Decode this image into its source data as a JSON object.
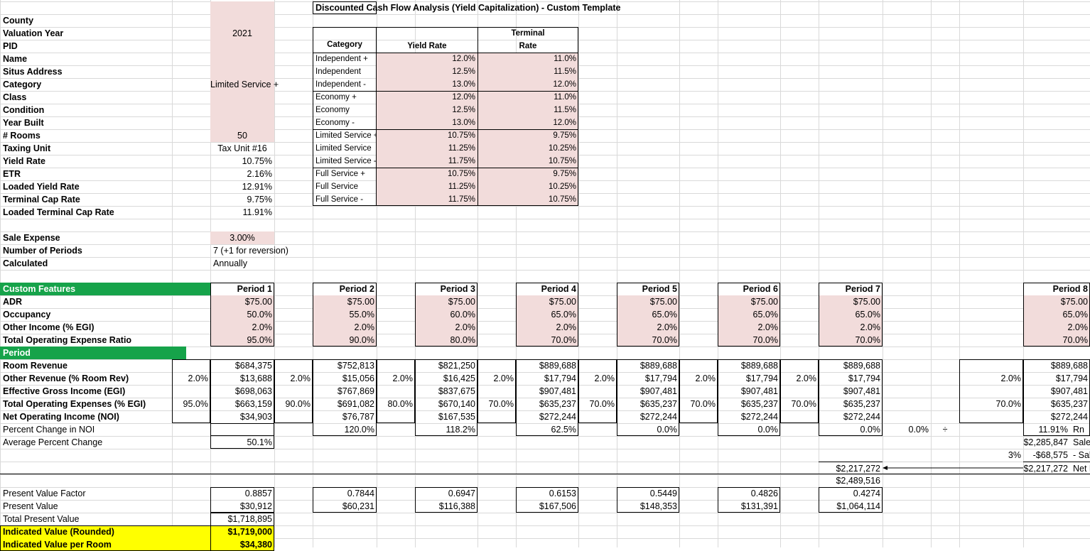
{
  "colors": {
    "input_fill": "#f2dcdb",
    "header_fill": "#16a34a",
    "highlight_fill": "#ffff00",
    "grid_line": "#d9d9d9"
  },
  "title": "Discounted Cash Flow Analysis (Yield Capitalization) - Custom Template",
  "subject": {
    "labels": [
      "County",
      "Valuation Year",
      "PID",
      "Name",
      "Situs Address",
      "Category",
      "Class",
      "Condition",
      "Year Built",
      "# Rooms",
      "Taxing Unit",
      "Yield Rate",
      "ETR",
      "Loaded Yield Rate",
      "Terminal Cap Rate",
      "Loaded Terminal Cap Rate"
    ],
    "values": [
      "",
      "2021",
      "",
      "",
      "",
      "Limited Service +",
      "",
      "",
      "",
      "50",
      "Tax Unit #16",
      "10.75%",
      "2.16%",
      "12.91%",
      "9.75%",
      "11.91%"
    ]
  },
  "settings": {
    "labels": [
      "Sale Expense",
      "Number of Periods",
      "Calculated"
    ],
    "values": [
      "3.00%",
      "7 (+1 for reversion)",
      "Annually"
    ]
  },
  "rate_table": {
    "headers": [
      "Category",
      "Yield Rate",
      "Terminal",
      "Rate"
    ],
    "rows": [
      [
        "Independent +",
        "12.0%",
        "11.0%"
      ],
      [
        "Independent",
        "12.5%",
        "11.5%"
      ],
      [
        "Independent -",
        "13.0%",
        "12.0%"
      ],
      [
        "Economy +",
        "12.0%",
        "11.0%"
      ],
      [
        "Economy",
        "12.5%",
        "11.5%"
      ],
      [
        "Economy -",
        "13.0%",
        "12.0%"
      ],
      [
        "Limited Service +",
        "10.75%",
        "9.75%"
      ],
      [
        "Limited Service",
        "11.25%",
        "10.25%"
      ],
      [
        "Limited Service -",
        "11.75%",
        "10.75%"
      ],
      [
        "Full Service +",
        "10.75%",
        "9.75%"
      ],
      [
        "Full Service",
        "11.25%",
        "10.25%"
      ],
      [
        "Full Service -",
        "11.75%",
        "10.75%"
      ]
    ]
  },
  "custom": {
    "labels": [
      "Custom Features",
      "ADR",
      "Occupancy",
      "Other Income (% EGI)",
      "Total Operating Expense Ratio"
    ],
    "periods": [
      [
        "Period 1",
        "$75.00",
        "50.0%",
        "2.0%",
        "95.0%"
      ],
      [
        "Period 2",
        "$75.00",
        "55.0%",
        "2.0%",
        "90.0%"
      ],
      [
        "Period 3",
        "$75.00",
        "60.0%",
        "2.0%",
        "80.0%"
      ],
      [
        "Period 4",
        "$75.00",
        "65.0%",
        "2.0%",
        "70.0%"
      ],
      [
        "Period 5",
        "$75.00",
        "65.0%",
        "2.0%",
        "70.0%"
      ],
      [
        "Period 6",
        "$75.00",
        "65.0%",
        "2.0%",
        "70.0%"
      ],
      [
        "Period 7",
        "$75.00",
        "65.0%",
        "2.0%",
        "70.0%"
      ],
      [
        "Period 8",
        "$75.00",
        "65.0%",
        "2.0%",
        "70.0%"
      ]
    ]
  },
  "cashflow": {
    "labels": [
      "Period",
      "Room Revenue",
      "Other Revenue (% Room Rev)",
      "Effective Gross Income (EGI)",
      "Total Operating Expenses (% EGI)",
      "Net Operating Income (NOI)",
      "Percent Change in NOI",
      "Average Percent Change"
    ],
    "pct_header": "%",
    "periods": [
      {
        "n": "1",
        "other_pct": "2.0%",
        "opex_pct": "95.0%",
        "vals": [
          "$684,375",
          "$13,688",
          "$698,063",
          "$663,159",
          "$34,903",
          ""
        ]
      },
      {
        "n": "2",
        "other_pct": "2.0%",
        "opex_pct": "90.0%",
        "vals": [
          "$752,813",
          "$15,056",
          "$767,869",
          "$691,082",
          "$76,787",
          "120.0%"
        ]
      },
      {
        "n": "3",
        "other_pct": "2.0%",
        "opex_pct": "80.0%",
        "vals": [
          "$821,250",
          "$16,425",
          "$837,675",
          "$670,140",
          "$167,535",
          "118.2%"
        ]
      },
      {
        "n": "4",
        "other_pct": "2.0%",
        "opex_pct": "70.0%",
        "vals": [
          "$889,688",
          "$17,794",
          "$907,481",
          "$635,237",
          "$272,244",
          "62.5%"
        ]
      },
      {
        "n": "5",
        "other_pct": "2.0%",
        "opex_pct": "70.0%",
        "vals": [
          "$889,688",
          "$17,794",
          "$907,481",
          "$635,237",
          "$272,244",
          "0.0%"
        ]
      },
      {
        "n": "6",
        "other_pct": "2.0%",
        "opex_pct": "70.0%",
        "vals": [
          "$889,688",
          "$17,794",
          "$907,481",
          "$635,237",
          "$272,244",
          "0.0%"
        ]
      },
      {
        "n": "7",
        "other_pct": "2.0%",
        "opex_pct": "70.0%",
        "vals": [
          "$889,688",
          "$17,794",
          "$907,481",
          "$635,237",
          "$272,244",
          "0.0%"
        ]
      },
      {
        "n": "8",
        "other_pct": "2.0%",
        "opex_pct": "70.0%",
        "vals": [
          "$889,688",
          "$17,794",
          "$907,481",
          "$635,237",
          "$272,244",
          ""
        ]
      }
    ],
    "avg_change": "50.1%",
    "extra_pct": "0.0%",
    "divide_symbol": "÷"
  },
  "reversion": {
    "rate": "11.91%",
    "rate_label": "Rn",
    "sale_price": "$2,285,847",
    "sale_price_label": "Sale Price",
    "sale_exp_pct": "3%",
    "sale_exp": "-$68,575",
    "sale_exp_label": "- Sale Exp",
    "net": "$2,217,272",
    "net_label": "Net Proceeds",
    "p7_net": "$2,217,272",
    "p7_total": "$2,489,516"
  },
  "pv": {
    "labels": [
      "Present Value Factor",
      "Present Value",
      "Total Present Value",
      "Indicated Value (Rounded)",
      "Indicated Value per Room"
    ],
    "factors": [
      "0.8857",
      "0.7844",
      "0.6947",
      "0.6153",
      "0.5449",
      "0.4826",
      "0.4274"
    ],
    "values": [
      "$30,912",
      "$60,231",
      "$116,388",
      "$167,506",
      "$148,353",
      "$131,391",
      "$1,064,114"
    ],
    "total": "$1,718,895",
    "rounded": "$1,719,000",
    "per_room": "$34,380"
  }
}
